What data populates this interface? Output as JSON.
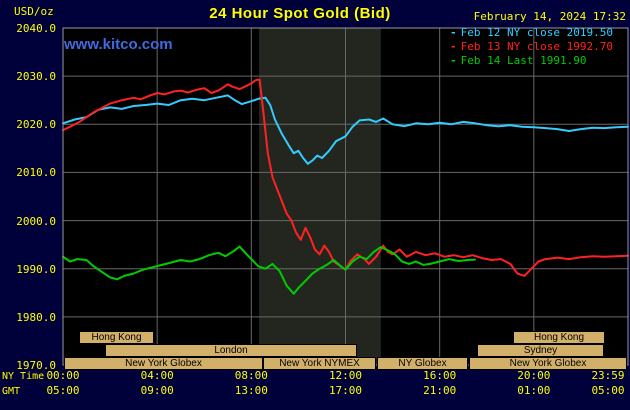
{
  "header": {
    "unit_label": "USD/oz",
    "title": "24 Hour Spot Gold (Bid)",
    "watermark": "www.kitco.com",
    "datetime": "February 14, 2024 17:32"
  },
  "legend": {
    "items": [
      {
        "marker": "-",
        "label": "Feb 12 NY close 2019.50",
        "color": "#33ccff"
      },
      {
        "marker": "-",
        "label": "Feb 13 NY close 1992.70",
        "color": "#ff2222"
      },
      {
        "marker": "-",
        "label": "Feb 14 Last 1991.90",
        "color": "#00cc00"
      }
    ]
  },
  "axes": {
    "ny_label": "NY Time",
    "gmt_label": "GMT",
    "y_ticks": [
      "2040.0",
      "2030.0",
      "2020.0",
      "2010.0",
      "2000.0",
      "1990.0",
      "1980.0",
      "1970.0"
    ],
    "x_ticks_ny": [
      "00:00",
      "04:00",
      "08:00",
      "12:00",
      "16:00",
      "20:00",
      "23:59"
    ],
    "x_ticks_gmt": [
      "05:00",
      "09:00",
      "13:00",
      "17:00",
      "21:00",
      "01:00",
      "05:00"
    ]
  },
  "sessions": {
    "rows": [
      [
        {
          "label": "Hong Kong",
          "start": 0.7,
          "end": 3.9
        },
        {
          "label": "Hong Kong",
          "start": 19.1,
          "end": 23.0
        }
      ],
      [
        {
          "label": "London",
          "start": 1.8,
          "end": 12.5
        },
        {
          "label": "Sydney",
          "start": 17.6,
          "end": 23.0
        }
      ],
      [
        {
          "label": "New York Globex",
          "start": 0.05,
          "end": 8.5
        },
        {
          "label": "New York NYMEX",
          "start": 8.5,
          "end": 13.3
        },
        {
          "label": "NY Globex",
          "start": 13.35,
          "end": 17.2
        },
        {
          "label": "New York Globex",
          "start": 17.25,
          "end": 23.95
        }
      ]
    ],
    "box_color": "#d2b06a",
    "text_color": "#000000"
  },
  "colors": {
    "background": "#00003a",
    "plot_background": "#000000",
    "grid": "#686868",
    "border": "#9a9a9a",
    "text_yellow": "#ffff00",
    "watermark_blue": "#4169e1",
    "session_band": "#23261f"
  },
  "chart_data": {
    "type": "line",
    "title": "24 Hour Spot Gold (Bid)",
    "xlabel": "NY Time (hours)",
    "ylabel": "USD/oz",
    "x_range": [
      0,
      24
    ],
    "y_range": [
      1970,
      2040
    ],
    "y_step": 10,
    "x_step_hours": 4,
    "grid": true,
    "legend_position": "top-right",
    "band": {
      "from": 8.33,
      "to": 13.5,
      "color": "#23261f"
    },
    "series": [
      {
        "name": "Feb 12 NY close",
        "close": 2019.5,
        "color": "#33ccff",
        "points": [
          [
            0,
            2020.2
          ],
          [
            0.5,
            2021
          ],
          [
            1,
            2021.5
          ],
          [
            1.5,
            2023
          ],
          [
            2,
            2023.5
          ],
          [
            2.5,
            2023.2
          ],
          [
            3,
            2023.8
          ],
          [
            3.5,
            2024
          ],
          [
            4,
            2024.3
          ],
          [
            4.5,
            2024
          ],
          [
            5,
            2025
          ],
          [
            5.5,
            2025.3
          ],
          [
            6,
            2025
          ],
          [
            6.5,
            2025.5
          ],
          [
            7,
            2026
          ],
          [
            7.3,
            2025
          ],
          [
            7.6,
            2024.2
          ],
          [
            8,
            2024.8
          ],
          [
            8.3,
            2025.3
          ],
          [
            8.6,
            2025.5
          ],
          [
            8.8,
            2024
          ],
          [
            9,
            2021
          ],
          [
            9.3,
            2018
          ],
          [
            9.6,
            2015.5
          ],
          [
            9.8,
            2014
          ],
          [
            10,
            2014.5
          ],
          [
            10.2,
            2013
          ],
          [
            10.4,
            2011.8
          ],
          [
            10.6,
            2012.5
          ],
          [
            10.8,
            2013.5
          ],
          [
            11,
            2013
          ],
          [
            11.3,
            2014.5
          ],
          [
            11.6,
            2016.5
          ],
          [
            12,
            2017.5
          ],
          [
            12.3,
            2019.5
          ],
          [
            12.6,
            2020.8
          ],
          [
            13,
            2021
          ],
          [
            13.3,
            2020.5
          ],
          [
            13.6,
            2021.2
          ],
          [
            14,
            2020
          ],
          [
            14.5,
            2019.6
          ],
          [
            15,
            2020.2
          ],
          [
            15.5,
            2020
          ],
          [
            16,
            2020.3
          ],
          [
            16.5,
            2020
          ],
          [
            17,
            2020.5
          ],
          [
            17.5,
            2020.2
          ],
          [
            18,
            2019.8
          ],
          [
            18.5,
            2019.6
          ],
          [
            19,
            2019.8
          ],
          [
            19.5,
            2019.5
          ],
          [
            20,
            2019.4
          ],
          [
            20.5,
            2019.2
          ],
          [
            21,
            2019
          ],
          [
            21.5,
            2018.6
          ],
          [
            22,
            2019
          ],
          [
            22.5,
            2019.3
          ],
          [
            23,
            2019.2
          ],
          [
            23.5,
            2019.4
          ],
          [
            24,
            2019.5
          ]
        ]
      },
      {
        "name": "Feb 13 NY close",
        "close": 1992.7,
        "color": "#ff2222",
        "points": [
          [
            0,
            2018.8
          ],
          [
            0.3,
            2019.5
          ],
          [
            0.7,
            2020.5
          ],
          [
            1,
            2021.5
          ],
          [
            1.3,
            2022.5
          ],
          [
            1.7,
            2023.5
          ],
          [
            2,
            2024.3
          ],
          [
            2.5,
            2025
          ],
          [
            3,
            2025.5
          ],
          [
            3.3,
            2025.2
          ],
          [
            3.7,
            2026
          ],
          [
            4,
            2026.5
          ],
          [
            4.3,
            2026.2
          ],
          [
            4.7,
            2026.8
          ],
          [
            5,
            2027
          ],
          [
            5.3,
            2026.6
          ],
          [
            5.7,
            2027.2
          ],
          [
            6,
            2027.5
          ],
          [
            6.3,
            2026.5
          ],
          [
            6.6,
            2027
          ],
          [
            7,
            2028.3
          ],
          [
            7.2,
            2027.8
          ],
          [
            7.5,
            2027.3
          ],
          [
            7.8,
            2028
          ],
          [
            8,
            2028.5
          ],
          [
            8.2,
            2029.2
          ],
          [
            8.35,
            2029.3
          ],
          [
            8.5,
            2023
          ],
          [
            8.7,
            2014
          ],
          [
            8.9,
            2009
          ],
          [
            9.1,
            2006.5
          ],
          [
            9.3,
            2004
          ],
          [
            9.5,
            2001.5
          ],
          [
            9.7,
            2000
          ],
          [
            9.9,
            1997.5
          ],
          [
            10.1,
            1996
          ],
          [
            10.3,
            1998.5
          ],
          [
            10.5,
            1996.5
          ],
          [
            10.7,
            1994
          ],
          [
            10.9,
            1993
          ],
          [
            11.1,
            1994.8
          ],
          [
            11.3,
            1993.5
          ],
          [
            11.5,
            1991.5
          ],
          [
            11.8,
            1990.5
          ],
          [
            12,
            1989.8
          ],
          [
            12.2,
            1991.5
          ],
          [
            12.5,
            1993
          ],
          [
            12.8,
            1992
          ],
          [
            13,
            1991
          ],
          [
            13.3,
            1992.5
          ],
          [
            13.6,
            1994.8
          ],
          [
            13.8,
            1993.5
          ],
          [
            14,
            1993
          ],
          [
            14.3,
            1994
          ],
          [
            14.6,
            1992.5
          ],
          [
            15,
            1993.5
          ],
          [
            15.4,
            1992.8
          ],
          [
            15.8,
            1993.2
          ],
          [
            16.2,
            1992.5
          ],
          [
            16.6,
            1992.8
          ],
          [
            17,
            1992.4
          ],
          [
            17.4,
            1992.8
          ],
          [
            17.8,
            1992.2
          ],
          [
            18.2,
            1991.8
          ],
          [
            18.6,
            1992
          ],
          [
            19,
            1991
          ],
          [
            19.3,
            1989
          ],
          [
            19.6,
            1988.5
          ],
          [
            19.9,
            1990
          ],
          [
            20.2,
            1991.5
          ],
          [
            20.5,
            1992
          ],
          [
            21,
            1992.3
          ],
          [
            21.5,
            1992
          ],
          [
            22,
            1992.4
          ],
          [
            22.5,
            1992.6
          ],
          [
            23,
            1992.5
          ],
          [
            23.5,
            1992.6
          ],
          [
            24,
            1992.7
          ]
        ]
      },
      {
        "name": "Feb 14 Last",
        "close": 1991.9,
        "color": "#00cc00",
        "points": [
          [
            0,
            1992.5
          ],
          [
            0.3,
            1991.5
          ],
          [
            0.6,
            1992
          ],
          [
            1,
            1991.8
          ],
          [
            1.3,
            1990.5
          ],
          [
            1.6,
            1989.5
          ],
          [
            2,
            1988.2
          ],
          [
            2.3,
            1987.8
          ],
          [
            2.6,
            1988.5
          ],
          [
            3,
            1989
          ],
          [
            3.4,
            1989.8
          ],
          [
            3.8,
            1990.3
          ],
          [
            4.2,
            1990.8
          ],
          [
            4.6,
            1991.3
          ],
          [
            5,
            1991.8
          ],
          [
            5.4,
            1991.5
          ],
          [
            5.8,
            1992
          ],
          [
            6.2,
            1992.8
          ],
          [
            6.6,
            1993.3
          ],
          [
            6.9,
            1992.6
          ],
          [
            7.2,
            1993.5
          ],
          [
            7.5,
            1994.6
          ],
          [
            7.8,
            1993
          ],
          [
            8,
            1992
          ],
          [
            8.3,
            1990.5
          ],
          [
            8.6,
            1990
          ],
          [
            8.9,
            1991
          ],
          [
            9.2,
            1989.5
          ],
          [
            9.5,
            1986.5
          ],
          [
            9.8,
            1984.8
          ],
          [
            10,
            1986
          ],
          [
            10.3,
            1987.5
          ],
          [
            10.6,
            1989
          ],
          [
            10.9,
            1990
          ],
          [
            11.2,
            1990.8
          ],
          [
            11.5,
            1991.8
          ],
          [
            11.8,
            1990.5
          ],
          [
            12,
            1989.8
          ],
          [
            12.3,
            1991.5
          ],
          [
            12.6,
            1992.5
          ],
          [
            12.9,
            1992
          ],
          [
            13.2,
            1993.5
          ],
          [
            13.5,
            1994.5
          ],
          [
            13.8,
            1993.8
          ],
          [
            14.1,
            1993
          ],
          [
            14.4,
            1991.5
          ],
          [
            14.7,
            1991
          ],
          [
            15,
            1991.5
          ],
          [
            15.3,
            1990.8
          ],
          [
            15.6,
            1991
          ],
          [
            16,
            1991.5
          ],
          [
            16.4,
            1992
          ],
          [
            16.8,
            1991.6
          ],
          [
            17.2,
            1991.8
          ],
          [
            17.5,
            1991.9
          ]
        ]
      }
    ]
  }
}
